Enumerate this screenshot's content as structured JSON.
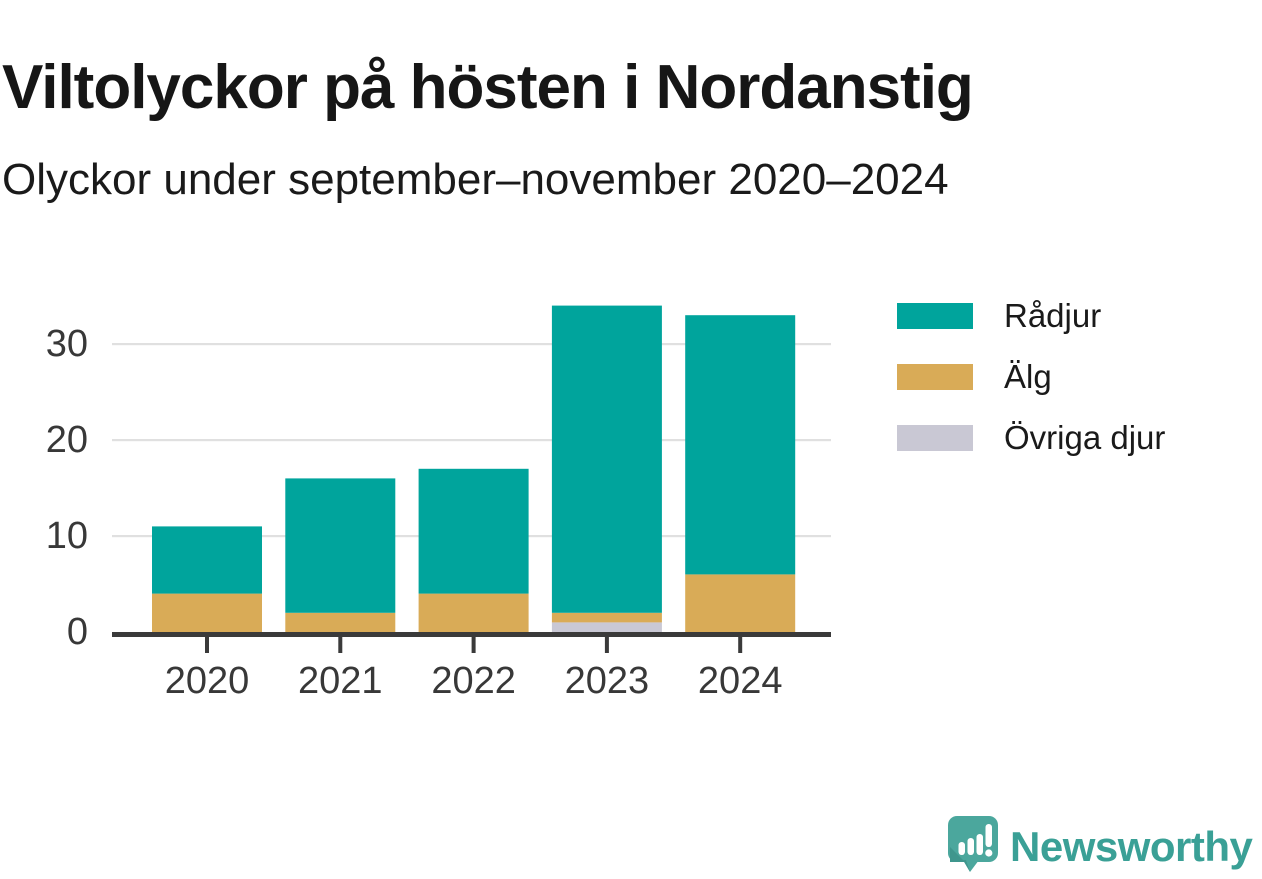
{
  "header": {
    "title": "Viltolyckor på hösten i Nordanstig",
    "subtitle": "Olyckor under september–november 2020–2024"
  },
  "chart_data": {
    "type": "bar",
    "stacked": true,
    "title": "Viltolyckor på hösten i Nordanstig",
    "subtitle": "Olyckor under september–november 2020–2024",
    "categories": [
      "2020",
      "2021",
      "2022",
      "2023",
      "2024"
    ],
    "series": [
      {
        "name": "Rådjur",
        "color": "#00a49c",
        "values": [
          7,
          14,
          13,
          32,
          27
        ]
      },
      {
        "name": "Älg",
        "color": "#d9ab57",
        "values": [
          4,
          2,
          4,
          1,
          6
        ]
      },
      {
        "name": "Övriga djur",
        "color": "#c9c8d4",
        "values": [
          0,
          0,
          0,
          1,
          0
        ]
      }
    ],
    "stack_order_bottom_to_top": [
      "Övriga djur",
      "Älg",
      "Rådjur"
    ],
    "totals": [
      11,
      16,
      17,
      34,
      33
    ],
    "xlabel": "",
    "ylabel": "",
    "ylim": [
      0,
      35
    ],
    "yticks": [
      0,
      10,
      20,
      30
    ],
    "grid": "horizontal",
    "legend_position": "right",
    "colors": {
      "axis": "#3a3a3a",
      "gridline": "#e0e0e0",
      "tick_text": "#383838"
    }
  },
  "footer": {
    "brand": "Newsworthy",
    "brand_color": "#3aa096",
    "logo_icon": "newsworthy-speech-bubble-chart-icon",
    "logo_teal": "#4ba79d",
    "logo_teal_dark": "#3f968d"
  }
}
